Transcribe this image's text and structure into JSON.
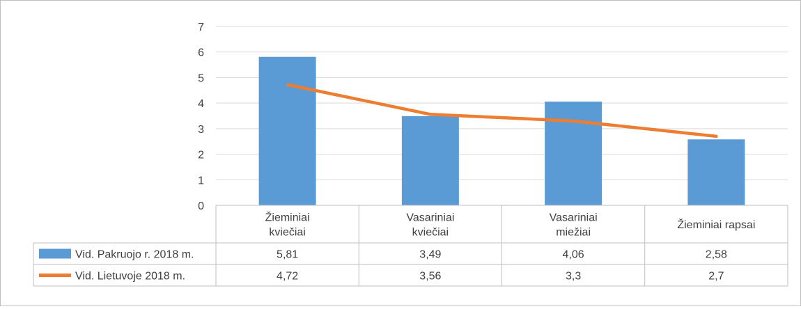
{
  "chart_data": {
    "type": "bar",
    "categories": [
      [
        "Žieminiai",
        "kviečiai"
      ],
      [
        "Vasariniai",
        "kviečiai"
      ],
      [
        "Vasariniai",
        "miežiai"
      ],
      [
        "Žieminiai rapsai"
      ]
    ],
    "ylim": [
      0,
      7
    ],
    "yticks": [
      "0",
      "1",
      "2",
      "3",
      "4",
      "5",
      "6",
      "7"
    ],
    "grid": true,
    "legend": "data-table",
    "series": [
      {
        "name": "Vid. Pakruojo r. 2018 m.",
        "type": "bar",
        "color": "#5B9BD5",
        "values": [
          5.81,
          3.49,
          4.06,
          2.58
        ],
        "labels": [
          "5,81",
          "3,49",
          "4,06",
          "2,58"
        ]
      },
      {
        "name": "Vid. Lietuvoje 2018 m.",
        "type": "line",
        "color": "#ED7D31",
        "values": [
          4.72,
          3.56,
          3.3,
          2.7
        ],
        "labels": [
          "4,72",
          "3,56",
          "3,3",
          "2,7"
        ]
      }
    ]
  }
}
